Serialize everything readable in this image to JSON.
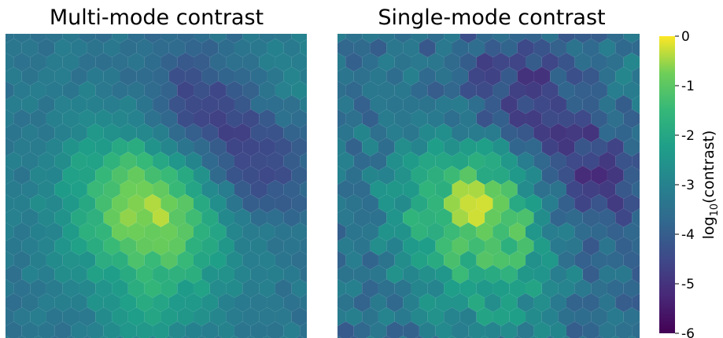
{
  "chart_data": {
    "type": "heatmap",
    "plot_kind": "hexbin",
    "colormap": "viridis",
    "panels": [
      {
        "title": "Multi-mode contrast",
        "field": {
          "background": -3.4,
          "blobs": [
            {
              "x": 0.5,
              "y": 0.55,
              "amp": 3.2,
              "sigma": 0.2
            },
            {
              "x": 0.5,
              "y": 0.92,
              "amp": 0.6,
              "sigma": 0.12
            },
            {
              "x": 0.9,
              "y": 0.2,
              "amp": 0.5,
              "sigma": 0.15
            },
            {
              "x": 0.62,
              "y": 0.28,
              "amp": -1.8,
              "sigma": 0.15
            },
            {
              "x": 0.82,
              "y": 0.45,
              "amp": -1.6,
              "sigma": 0.14
            }
          ],
          "noise": 0.25
        }
      },
      {
        "title": "Single-mode contrast",
        "field": {
          "background": -3.6,
          "blobs": [
            {
              "x": 0.5,
              "y": 0.55,
              "amp": 3.5,
              "sigma": 0.2
            },
            {
              "x": 0.5,
              "y": 0.92,
              "amp": 0.5,
              "sigma": 0.12
            },
            {
              "x": 0.9,
              "y": 0.2,
              "amp": 0.5,
              "sigma": 0.15
            },
            {
              "x": 0.6,
              "y": 0.28,
              "amp": -2.0,
              "sigma": 0.17
            },
            {
              "x": 0.82,
              "y": 0.5,
              "amp": -1.8,
              "sigma": 0.15
            }
          ],
          "noise": 0.55
        }
      }
    ],
    "colorbar": {
      "label": "log10(contrast)",
      "range": [
        -6,
        0
      ],
      "ticks": [
        "0",
        "-1",
        "-2",
        "-3",
        "-4",
        "-5",
        "-6"
      ],
      "tick_values": [
        0,
        -1,
        -2,
        -3,
        -4,
        -5,
        -6
      ]
    }
  }
}
